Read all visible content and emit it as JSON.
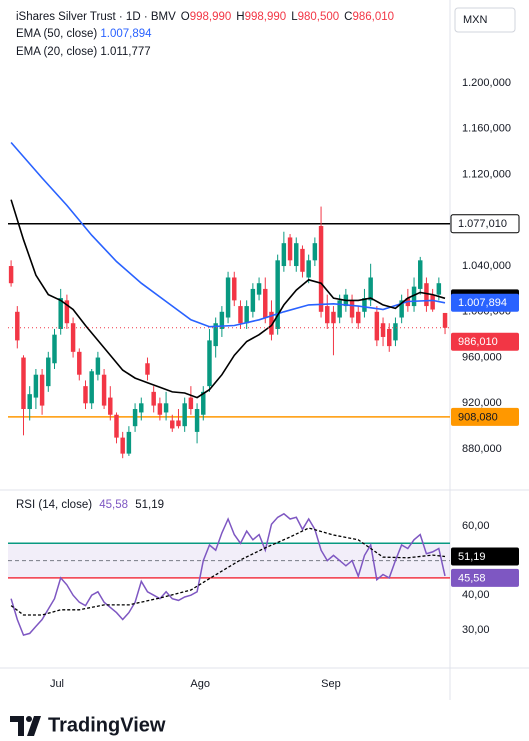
{
  "chart_data": {
    "type": "candlestick",
    "header": {
      "symbol": "iShares Silver Trust · 1D · BMV",
      "ohlc": [
        {
          "key": "O",
          "label": "998,990"
        },
        {
          "key": "H",
          "label": "998,990"
        },
        {
          "key": "L",
          "label": "980,500"
        },
        {
          "key": "C",
          "label": "986,010"
        }
      ]
    },
    "currency": "MXN",
    "xlim": [
      -0.5,
      70.8
    ],
    "xticks": [
      {
        "value": 7.4,
        "label": "Jul"
      },
      {
        "value": 30.5,
        "label": "Ago"
      },
      {
        "value": 51.6,
        "label": "Sep"
      }
    ],
    "ylim": [
      844.2,
      1272.6
    ],
    "yticks": [
      {
        "value": 1200,
        "label": "1.200,000"
      },
      {
        "value": 1160,
        "label": "1.160,000"
      },
      {
        "value": 1120,
        "label": "1.120,000"
      },
      {
        "value": 1040,
        "label": "1.040,000"
      },
      {
        "value": 1000,
        "label": "1.000,000"
      },
      {
        "value": 960,
        "label": "960,000"
      },
      {
        "value": 920,
        "label": "920,000"
      },
      {
        "value": 880,
        "label": "880,000"
      }
    ],
    "up_color": "#089981",
    "down_color": "#f23645",
    "open": [
      1040,
      1000,
      960,
      915,
      925,
      945,
      935,
      955,
      985,
      1010,
      990,
      965,
      935,
      920,
      945,
      945,
      925,
      910,
      890,
      876,
      900,
      912,
      955,
      930,
      920,
      912,
      905,
      905,
      900,
      925,
      895,
      910,
      935,
      970,
      985,
      995,
      1030,
      1005,
      990,
      1000,
      1015,
      1020,
      1000,
      985,
      1040,
      1065,
      1040,
      1055,
      1030,
      1045,
      1075,
      1005,
      1000,
      995,
      1005,
      1010,
      1000,
      1000,
      1010,
      1000,
      990,
      985,
      975,
      995,
      1012,
      1005,
      1020,
      1025,
      1015,
      1015,
      998.99
    ],
    "high": [
      1045,
      1005,
      962,
      935,
      950,
      950,
      965,
      985,
      1020,
      1015,
      995,
      968,
      940,
      950,
      965,
      950,
      935,
      912,
      895,
      900,
      920,
      925,
      960,
      935,
      925,
      930,
      910,
      915,
      925,
      935,
      920,
      935,
      985,
      995,
      1005,
      1035,
      1035,
      1010,
      1010,
      1025,
      1030,
      1030,
      1010,
      1050,
      1070,
      1068,
      1065,
      1058,
      1050,
      1065,
      1092,
      1015,
      1005,
      1015,
      1020,
      1015,
      1005,
      1020,
      1042,
      1005,
      995,
      990,
      995,
      1015,
      1020,
      1030,
      1048,
      1030,
      1020,
      1030,
      998.99
    ],
    "low": [
      1022,
      968,
      892,
      905,
      915,
      910,
      930,
      950,
      980,
      985,
      960,
      940,
      915,
      915,
      940,
      915,
      905,
      885,
      872,
      874,
      895,
      905,
      940,
      912,
      905,
      905,
      895,
      898,
      895,
      910,
      885,
      905,
      930,
      960,
      978,
      990,
      1005,
      985,
      985,
      995,
      1010,
      990,
      975,
      980,
      1035,
      1040,
      1035,
      1030,
      1025,
      1040,
      995,
      985,
      962,
      990,
      1000,
      990,
      985,
      995,
      1005,
      970,
      970,
      965,
      970,
      990,
      1000,
      1000,
      1015,
      1000,
      1000,
      1010,
      980.5
    ],
    "close": [
      1025,
      975,
      915,
      928,
      945,
      918,
      960,
      980,
      1012,
      990,
      965,
      945,
      920,
      948,
      960,
      918,
      910,
      890,
      876,
      895,
      915,
      920,
      945,
      918,
      910,
      920,
      898,
      900,
      920,
      915,
      915,
      930,
      975,
      990,
      1000,
      1030,
      1010,
      990,
      1005,
      1020,
      1025,
      995,
      980,
      1045,
      1060,
      1045,
      1060,
      1035,
      1045,
      1060,
      1000,
      990,
      990,
      1010,
      1015,
      995,
      990,
      1012,
      1030,
      975,
      978,
      970,
      990,
      1010,
      1005,
      1022,
      1045,
      1005,
      1002,
      1025,
      986.01
    ],
    "last_price_label": "986,010",
    "lines": [
      {
        "name": "EMA (50, close)",
        "label": "1.007,894",
        "color": "#2962ff",
        "x": [
          0,
          5,
          9,
          13,
          17,
          21,
          25,
          29,
          32,
          36,
          40,
          44,
          48,
          52,
          56,
          60,
          64,
          68,
          70
        ],
        "values": [
          1148,
          1117,
          1093,
          1067,
          1044,
          1025,
          1009,
          993,
          987,
          988,
          993,
          1000,
          1006,
          1007,
          1005,
          1002,
          1009,
          1010,
          1007.894
        ]
      },
      {
        "name": "EMA (20, close)",
        "label": "1.011,777",
        "color": "#000000",
        "x": [
          0,
          2,
          4,
          6,
          8,
          10,
          12,
          14,
          16,
          18,
          20,
          22,
          24,
          26,
          28,
          30,
          32,
          34,
          36,
          38,
          40,
          42,
          44,
          46,
          48,
          50,
          52,
          54,
          56,
          58,
          60,
          62,
          64,
          66,
          68,
          70
        ],
        "values": [
          1098,
          1063,
          1032,
          1015,
          1010,
          1002,
          988,
          975,
          962,
          949,
          942,
          938,
          934,
          930,
          929,
          925,
          932,
          945,
          962,
          974,
          980,
          988,
          1006,
          1019,
          1028,
          1025,
          1012,
          1010,
          1010,
          1012,
          1006,
          1003,
          1012,
          1017,
          1015,
          1011.777
        ]
      }
    ],
    "hlines": [
      {
        "value": 1077.01,
        "label": "1.077,010",
        "color": "#000000"
      },
      {
        "value": 908.08,
        "label": "908,080",
        "color": "#ff9800"
      }
    ],
    "rsi": {
      "name": "RSI (14, close)",
      "label": "45,58",
      "color": "#7e57c2",
      "values": [
        39,
        33,
        28.5,
        29,
        31,
        33,
        36,
        39,
        45,
        43,
        40,
        38,
        37,
        40,
        41,
        38,
        36.5,
        35,
        33,
        35,
        38,
        44,
        41,
        40,
        39,
        41,
        39,
        38.5,
        39.5,
        40,
        41,
        50,
        54.5,
        53,
        58,
        62,
        57.5,
        55,
        58.5,
        56,
        57.5,
        53,
        60.5,
        62.5,
        63.5,
        62,
        62.5,
        59,
        62,
        59,
        53,
        50,
        51.5,
        50,
        48.5,
        50,
        45.5,
        51.5,
        54.5,
        44.5,
        46,
        45,
        50,
        54.5,
        53.5,
        56,
        57.5,
        52,
        52.5,
        53.5,
        45.58
      ],
      "ma": {
        "label": "51,19",
        "color": "#000000",
        "x": [
          0,
          2,
          5,
          8,
          11,
          15,
          19,
          24,
          29,
          33,
          37,
          41,
          45,
          48,
          52,
          56,
          60,
          64,
          68,
          70
        ],
        "values": [
          37,
          34.3,
          34.3,
          35.8,
          35.8,
          37.2,
          37.2,
          39.2,
          41.5,
          45.9,
          50.2,
          53.7,
          56.8,
          59.4,
          57.4,
          56,
          51,
          50.8,
          51.6,
          51.19
        ]
      },
      "ylim": [
        19,
        69.8
      ],
      "yticks": [
        {
          "value": 60,
          "label": "60,00"
        },
        {
          "value": 40,
          "label": "40,00"
        },
        {
          "value": 30,
          "label": "30,00"
        }
      ],
      "bands": [
        {
          "value": 55,
          "color": "#089981"
        },
        {
          "value": 45,
          "color": "#f23645"
        }
      ],
      "midline": 50
    },
    "footer": {
      "brand": "TradingView"
    }
  }
}
